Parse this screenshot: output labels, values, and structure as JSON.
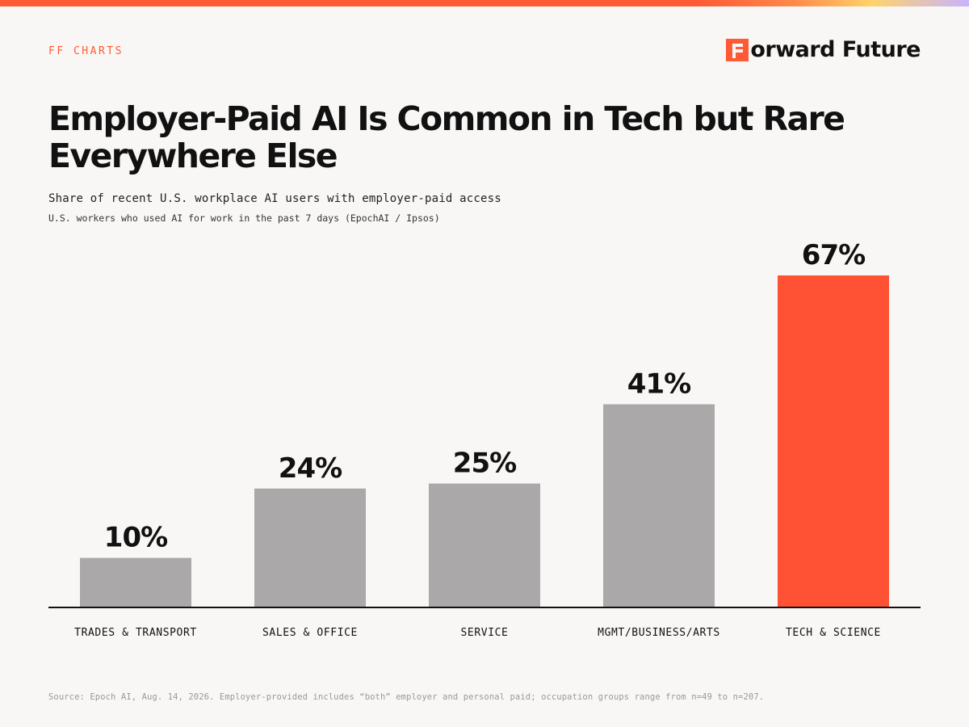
{
  "brand": {
    "kicker": "FF CHARTS",
    "logo_text": "orward Future",
    "accent_color": "#ff5a36"
  },
  "header": {
    "title": "Employer-Paid AI Is Common in Tech but Rare Everywhere Else",
    "subtitle": "Share of recent U.S. workplace AI users with employer-paid access",
    "note": "U.S. workers who used AI for work in the past 7 days (EpochAI / Ipsos)"
  },
  "footer": {
    "source": "Source: Epoch AI, Aug. 14, 2026. Employer-provided includes “both” employer and personal paid; occupation groups range from n=49 to n=207."
  },
  "chart_data": {
    "type": "bar",
    "categories": [
      "TRADES & TRANSPORT",
      "SALES & OFFICE",
      "SERVICE",
      "MGMT/BUSINESS/ARTS",
      "TECH & SCIENCE"
    ],
    "values": [
      10,
      24,
      25,
      41,
      67
    ],
    "value_labels": [
      "10%",
      "24%",
      "25%",
      "41%",
      "67%"
    ],
    "unit": "%",
    "ylim": [
      0,
      67
    ],
    "grid": false,
    "legend": "none",
    "colors": {
      "default": "#aaa8a8",
      "highlight": "#ff5133",
      "axis": "#111111"
    },
    "highlight_index": 4
  }
}
